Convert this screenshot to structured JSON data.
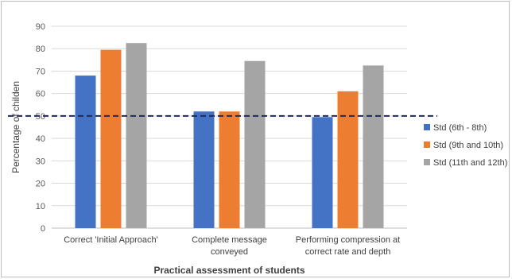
{
  "chart_data": {
    "type": "bar",
    "title": "",
    "xlabel": "Practical assessment of students",
    "ylabel": "Percentage of childen",
    "ylim": [
      0,
      90
    ],
    "yticks": [
      0,
      10,
      20,
      30,
      40,
      50,
      60,
      70,
      80,
      90
    ],
    "grid": true,
    "legend_position": "right",
    "categories": [
      [
        "Correct 'Initial Approach'"
      ],
      [
        "Complete message",
        "conveyed"
      ],
      [
        "Performing compression at",
        "correct rate and depth"
      ]
    ],
    "series": [
      {
        "name": "Std (6th - 8th)",
        "color": "#4472c4",
        "values": [
          68,
          52,
          49.5
        ]
      },
      {
        "name": "Std (9th and 10th)",
        "color": "#ed7d31",
        "values": [
          79.5,
          52,
          61
        ]
      },
      {
        "name": "Std (11th and 12th)",
        "color": "#a5a5a5",
        "values": [
          82.5,
          74.5,
          72.5
        ]
      }
    ],
    "reference_line": {
      "value": 50,
      "style": "dashed",
      "color": "#1f2a5a"
    }
  }
}
